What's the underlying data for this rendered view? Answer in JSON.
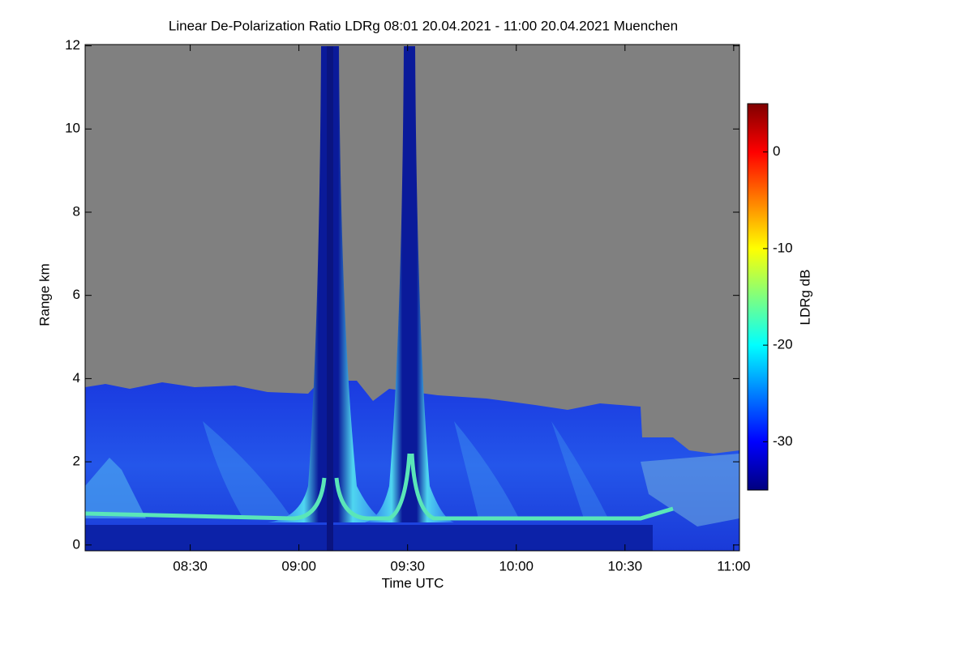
{
  "chart_data": {
    "type": "heatmap",
    "title": "Linear De-Polarization Ratio LDRg   08:01 20.04.2021 - 11:00 20.04.2021 Muenchen",
    "x_label": "Time UTC",
    "y_label": "Range km",
    "xlim": [
      481,
      661.6
    ],
    "xticks": [
      {
        "value": 510,
        "label": "08:30"
      },
      {
        "value": 540,
        "label": "09:00"
      },
      {
        "value": 570,
        "label": "09:30"
      },
      {
        "value": 600,
        "label": "10:00"
      },
      {
        "value": 630,
        "label": "10:30"
      },
      {
        "value": 660,
        "label": "11:00"
      }
    ],
    "ylim": [
      -0.14,
      12.03
    ],
    "yticks": [
      0,
      2,
      4,
      6,
      8,
      10,
      12
    ],
    "colorbar": {
      "label": "LDRg dB",
      "lim": [
        -35,
        5
      ],
      "ticks": [
        0,
        -10,
        -20,
        -30
      ],
      "colormap": [
        "#00007f",
        "#0000ff",
        "#007fff",
        "#00ffff",
        "#7fff7f",
        "#ffff00",
        "#ff7f00",
        "#ff0000",
        "#7f0000"
      ]
    }
  }
}
